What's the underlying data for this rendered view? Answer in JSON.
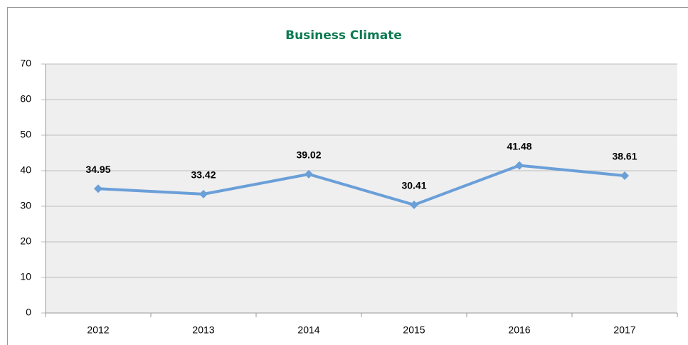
{
  "chart_data": {
    "type": "line",
    "title": "Business Climate",
    "categories": [
      "2012",
      "2013",
      "2014",
      "2015",
      "2016",
      "2017"
    ],
    "values": [
      34.95,
      33.42,
      39.02,
      30.41,
      41.48,
      38.61
    ],
    "color": "#6a9fd8",
    "ylim": [
      0,
      70
    ],
    "yticks": [
      0,
      10,
      20,
      30,
      40,
      50,
      60,
      70
    ],
    "grid": true
  }
}
